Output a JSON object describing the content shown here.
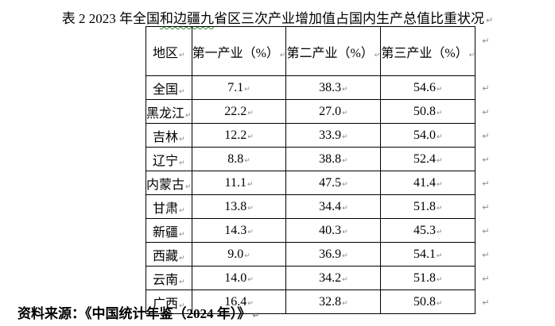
{
  "title": {
    "pre": "表 2 2023 年全国",
    "flagged": "和边疆九",
    "post": "省区三次产业增加值占国内生产总值比重状况"
  },
  "source_note": "资料来源：《中国统计年鉴（2024 年）》",
  "marks": {
    "paragraph_mark": "↵",
    "cell_end_mark": "↵"
  },
  "colors": {
    "text": "#000000",
    "table_border": "#000000",
    "formatting_mark": "#8a8a8a",
    "spellcheck_underline": "#2e8b2e",
    "background": "#ffffff"
  },
  "table": {
    "headers": [
      "地区",
      "第一产业（%）",
      "第二产业（%）",
      "第三产业（%）"
    ],
    "rows": [
      {
        "region": "全国",
        "values": [
          "7.1",
          "38.3",
          "54.6"
        ]
      },
      {
        "region": "黑龙江",
        "values": [
          "22.2",
          "27.0",
          "50.8"
        ]
      },
      {
        "region": "吉林",
        "values": [
          "12.2",
          "33.9",
          "54.0"
        ]
      },
      {
        "region": "辽宁",
        "values": [
          "8.8",
          "38.8",
          "52.4"
        ]
      },
      {
        "region": "内蒙古",
        "values": [
          "11.1",
          "47.5",
          "41.4"
        ]
      },
      {
        "region": "甘肃",
        "values": [
          "13.8",
          "34.4",
          "51.8"
        ]
      },
      {
        "region": "新疆",
        "values": [
          "14.3",
          "40.3",
          "45.3"
        ]
      },
      {
        "region": "西藏",
        "values": [
          "9.0",
          "36.9",
          "54.1"
        ]
      },
      {
        "region": "云南",
        "values": [
          "14.0",
          "34.2",
          "51.8"
        ]
      },
      {
        "region": "广西",
        "values": [
          "16.4",
          "32.8",
          "50.8"
        ]
      }
    ]
  },
  "chart_data": {
    "type": "table",
    "title": "表 2 2023 年全国和边疆九省区三次产业增加值占国内生产总值比重状况",
    "columns": [
      "地区",
      "第一产业（%）",
      "第二产业（%）",
      "第三产业（%）"
    ],
    "rows": [
      [
        "全国",
        7.1,
        38.3,
        54.6
      ],
      [
        "黑龙江",
        22.2,
        27.0,
        50.8
      ],
      [
        "吉林",
        12.2,
        33.9,
        54.0
      ],
      [
        "辽宁",
        8.8,
        38.8,
        52.4
      ],
      [
        "内蒙古",
        11.1,
        47.5,
        41.4
      ],
      [
        "甘肃",
        13.8,
        34.4,
        51.8
      ],
      [
        "新疆",
        14.3,
        40.3,
        45.3
      ],
      [
        "西藏",
        9.0,
        36.9,
        54.1
      ],
      [
        "云南",
        14.0,
        34.2,
        51.8
      ],
      [
        "广西",
        16.4,
        32.8,
        50.8
      ]
    ],
    "source": "资料来源：《中国统计年鉴（2024 年）》"
  }
}
